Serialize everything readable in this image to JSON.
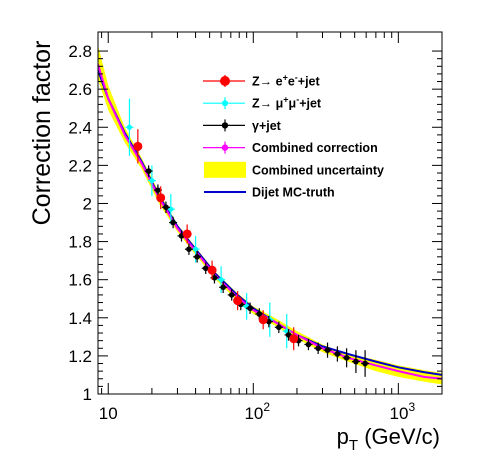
{
  "chart_data": {
    "type": "scatter",
    "title": "",
    "xlabel_main": "p",
    "xlabel_sub": "T",
    "xlabel_unit": " (GeV/c)",
    "ylabel": "Correction factor",
    "x_scale": "log",
    "xlim": [
      8.5,
      2000
    ],
    "ylim": [
      1.0,
      2.9
    ],
    "x_tick_labels": [
      {
        "value": 10,
        "base": "10",
        "exp": ""
      },
      {
        "value": 100,
        "base": "10",
        "exp": "2"
      },
      {
        "value": 1000,
        "base": "10",
        "exp": "3"
      }
    ],
    "y_ticks": [
      1,
      1.2,
      1.4,
      1.6,
      1.8,
      2,
      2.2,
      2.4,
      2.6,
      2.8
    ],
    "y_tick_labels": [
      "1",
      "1.2",
      "1.4",
      "1.6",
      "1.8",
      "2",
      "2.2",
      "2.4",
      "2.6",
      "2.8"
    ],
    "legend_position": "top-right",
    "legend": [
      {
        "pre": "Z→ e",
        "sup1": "+",
        "mid": "e",
        "sup2": "-",
        "post": "+jet"
      },
      {
        "pre": "Z→ μ",
        "sup1": "+",
        "mid": "μ",
        "sup2": "-",
        "post": "+jet"
      },
      {
        "pre": "γ+jet",
        "sup1": "",
        "mid": "",
        "sup2": "",
        "post": ""
      },
      {
        "pre": "Combined correction",
        "sup1": "",
        "mid": "",
        "sup2": "",
        "post": ""
      },
      {
        "pre": "Combined uncertainty",
        "sup1": "",
        "mid": "",
        "sup2": "",
        "post": ""
      },
      {
        "pre": "Dijet MC-truth",
        "sup1": "",
        "mid": "",
        "sup2": "",
        "post": ""
      }
    ],
    "colors": {
      "zee": "#ff0000",
      "zmumu": "#00ffff",
      "gamma": "#000000",
      "combined": "#ff00ff",
      "band": "#ffff00",
      "dijet": "#0000cc"
    },
    "series": [
      {
        "name": "Z→ e+e-+jet",
        "x": [
          16,
          23,
          35,
          52,
          78,
          117,
          190
        ],
        "y": [
          2.3,
          2.03,
          1.84,
          1.65,
          1.49,
          1.39,
          1.29
        ],
        "yerr": [
          0.09,
          0.06,
          0.05,
          0.05,
          0.05,
          0.05,
          0.06
        ]
      },
      {
        "name": "Z→ μ+μ-+jet",
        "x": [
          14,
          20,
          27,
          40,
          60,
          90,
          130,
          170
        ],
        "y": [
          2.4,
          2.12,
          1.97,
          1.76,
          1.6,
          1.46,
          1.39,
          1.33
        ],
        "yerr": [
          0.15,
          0.08,
          0.08,
          0.07,
          0.07,
          0.07,
          0.09,
          0.09
        ]
      },
      {
        "name": "γ+jet",
        "x": [
          16,
          19,
          22,
          25,
          28,
          32,
          36,
          41,
          47,
          54,
          62,
          71,
          82,
          95,
          110,
          128,
          150,
          175,
          205,
          240,
          280,
          325,
          380,
          440,
          510,
          590
        ],
        "y": [
          2.29,
          2.17,
          2.07,
          1.98,
          1.9,
          1.83,
          1.76,
          1.72,
          1.66,
          1.61,
          1.56,
          1.52,
          1.47,
          1.45,
          1.42,
          1.38,
          1.35,
          1.31,
          1.28,
          1.26,
          1.24,
          1.23,
          1.21,
          1.19,
          1.17,
          1.16
        ],
        "yerr": [
          0.04,
          0.03,
          0.03,
          0.03,
          0.03,
          0.03,
          0.03,
          0.03,
          0.03,
          0.03,
          0.03,
          0.03,
          0.03,
          0.03,
          0.03,
          0.03,
          0.03,
          0.03,
          0.03,
          0.03,
          0.03,
          0.04,
          0.04,
          0.05,
          0.06,
          0.07
        ]
      },
      {
        "name": "Combined correction",
        "x": [
          8.5,
          10,
          13,
          17,
          22,
          30,
          40,
          55,
          75,
          100,
          140,
          200,
          300,
          450,
          700,
          1000,
          1500,
          2000
        ],
        "y": [
          2.73,
          2.55,
          2.36,
          2.21,
          2.04,
          1.87,
          1.75,
          1.62,
          1.52,
          1.44,
          1.38,
          1.31,
          1.24,
          1.19,
          1.15,
          1.12,
          1.09,
          1.08
        ]
      },
      {
        "name": "Combined uncertainty",
        "x": [
          8.5,
          10,
          13,
          17,
          22,
          30,
          40,
          55,
          75,
          100,
          140,
          200,
          300,
          450,
          700,
          1000,
          1500,
          2000
        ],
        "low": [
          2.65,
          2.49,
          2.32,
          2.18,
          2.01,
          1.85,
          1.73,
          1.6,
          1.5,
          1.42,
          1.36,
          1.29,
          1.22,
          1.17,
          1.12,
          1.09,
          1.065,
          1.05
        ],
        "high": [
          2.83,
          2.62,
          2.4,
          2.24,
          2.07,
          1.89,
          1.77,
          1.64,
          1.54,
          1.46,
          1.4,
          1.33,
          1.26,
          1.21,
          1.18,
          1.15,
          1.125,
          1.11
        ]
      },
      {
        "name": "Dijet MC-truth",
        "x": [
          8.5,
          10,
          13,
          17,
          22,
          30,
          40,
          55,
          75,
          100,
          140,
          200,
          300,
          450,
          700,
          1000,
          1500,
          2000
        ],
        "y": [
          2.7,
          2.55,
          2.37,
          2.22,
          2.05,
          1.88,
          1.76,
          1.63,
          1.53,
          1.45,
          1.38,
          1.31,
          1.25,
          1.21,
          1.17,
          1.14,
          1.115,
          1.1
        ]
      }
    ]
  }
}
